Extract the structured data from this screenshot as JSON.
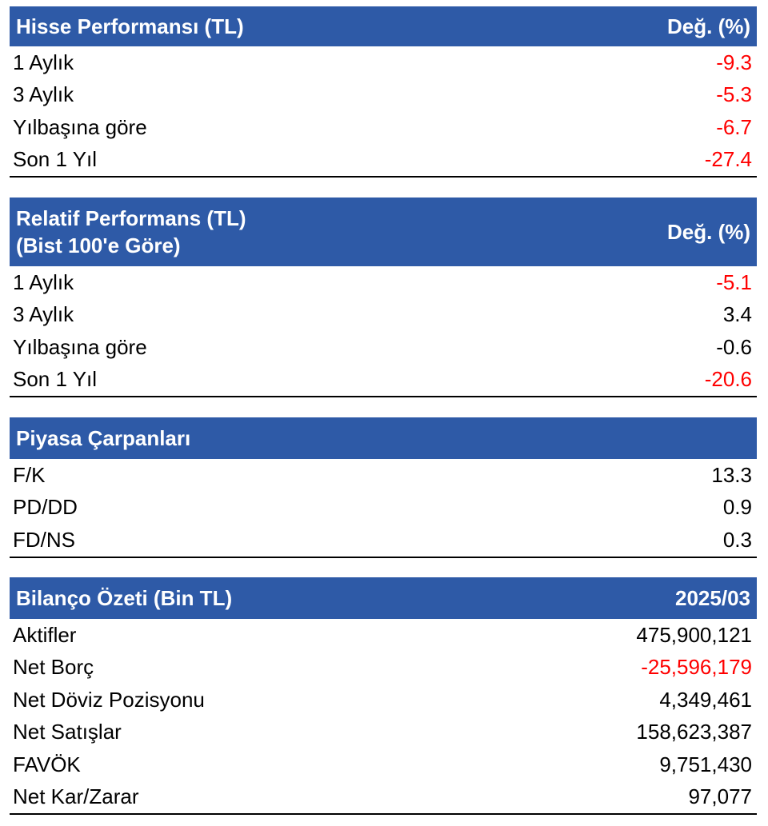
{
  "colors": {
    "header_bg": "#2e5aa7",
    "header_text": "#ffffff",
    "negative": "#ff0000",
    "text": "#000000"
  },
  "stock_performance": {
    "title": "Hisse Performansı (TL)",
    "column": "Değ. (%)",
    "rows": [
      {
        "label": "1 Aylık",
        "value": "-9.3"
      },
      {
        "label": "3 Aylık",
        "value": "-5.3"
      },
      {
        "label": "Yılbaşına göre",
        "value": "-6.7"
      },
      {
        "label": "Son 1 Yıl",
        "value": "-27.4"
      }
    ]
  },
  "relative_performance": {
    "title_line1": "Relatif Performans (TL)",
    "title_line2": "(Bist 100'e Göre)",
    "column": "Değ. (%)",
    "rows": [
      {
        "label": "1 Aylık",
        "value": "-5.1"
      },
      {
        "label": "3 Aylık",
        "value": "3.4"
      },
      {
        "label": "Yılbaşına göre",
        "value": "-0.6"
      },
      {
        "label": "Son 1 Yıl",
        "value": "-20.6"
      }
    ]
  },
  "market_multiples": {
    "title": "Piyasa Çarpanları",
    "rows": [
      {
        "label": "F/K",
        "value": "13.3"
      },
      {
        "label": "PD/DD",
        "value": "0.9"
      },
      {
        "label": "FD/NS",
        "value": "0.3"
      }
    ]
  },
  "balance_summary": {
    "title": "Bilanço Özeti (Bin TL)",
    "column": "2025/03",
    "rows": [
      {
        "label": "Aktifler",
        "value": "475,900,121"
      },
      {
        "label": "Net Borç",
        "value": "-25,596,179"
      },
      {
        "label": "Net Döviz Pozisyonu",
        "value": "4,349,461"
      },
      {
        "label": "Net Satışlar",
        "value": "158,623,387"
      },
      {
        "label": "FAVÖK",
        "value": "9,751,430"
      },
      {
        "label": "Net Kar/Zarar",
        "value": "97,077"
      }
    ]
  }
}
